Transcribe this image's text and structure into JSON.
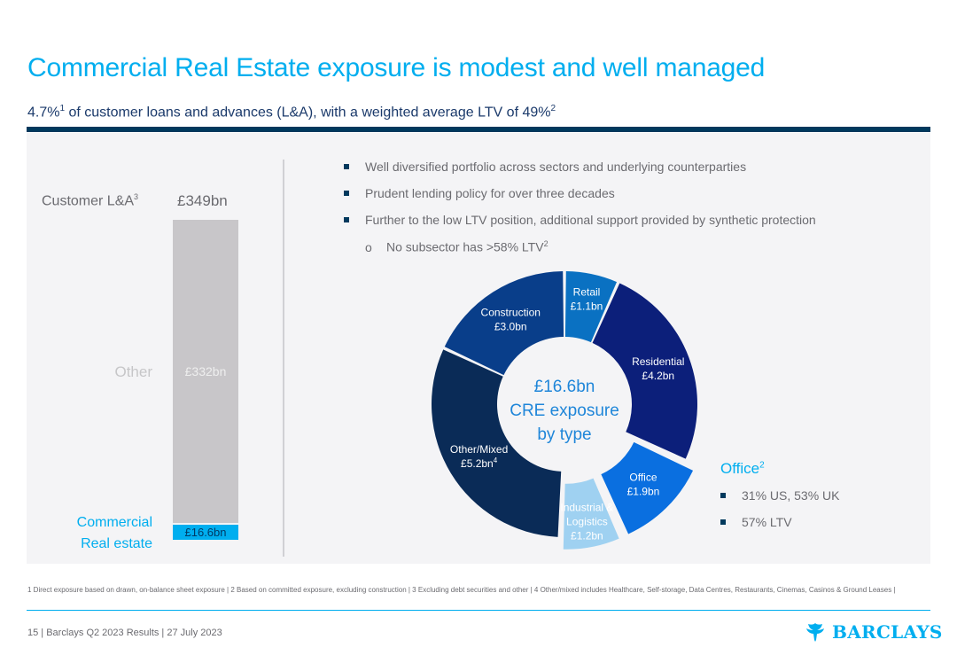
{
  "title": "Commercial Real Estate exposure is modest and well managed",
  "subtitle": {
    "pct": "4.7%",
    "pct_note": "1",
    "text": " of customer loans and advances (L&A), with a weighted average LTV of 49%",
    "note": "2"
  },
  "left_chart": {
    "label": "Customer L&A",
    "label_note": "3",
    "total": "£349bn",
    "other_label": "Other",
    "other_value": "£332bn",
    "cre_label_line1": "Commercial",
    "cre_label_line2": "Real estate",
    "cre_value": "£16.6bn"
  },
  "bullets": [
    "Well diversified portfolio across sectors and underlying counterparties",
    "Prudent lending policy for over three decades",
    "Further to the low LTV position, additional support provided by synthetic protection"
  ],
  "sub_bullet": {
    "marker": "o",
    "text": "No subsector has >58% LTV",
    "note": "2"
  },
  "donut": {
    "center_line1": "£16.6bn",
    "center_line2": "CRE exposure",
    "center_line3": "by type"
  },
  "office_box": {
    "heading": "Office",
    "heading_note": "2",
    "items": [
      "31% US, 53% UK",
      "57% LTV"
    ]
  },
  "footnote": "1 Direct exposure based on drawn, on-balance sheet exposure | 2 Based on committed exposure, excluding construction | 3 Excluding debt securities and other | 4 Other/mixed includes Healthcare, Self-storage, Data Centres, Restaurants, Cinemas, Casinos & Ground Leases |",
  "footer": "15  |  Barclays Q2 2023 Results  |  27 July 2023",
  "logo_text": "BARCLAYS",
  "chart_data": [
    {
      "type": "bar",
      "stacked": true,
      "categories": [
        "Customer L&A"
      ],
      "series": [
        {
          "name": "Commercial Real estate",
          "values": [
            16.6
          ]
        },
        {
          "name": "Other",
          "values": [
            332
          ]
        }
      ],
      "total": 349,
      "unit": "£bn"
    },
    {
      "type": "pie",
      "donut": true,
      "unit": "£bn",
      "slices": [
        {
          "name": "Retail",
          "value": 1.1,
          "value_label": "£1.1bn",
          "color": "#0a71c2",
          "text_color": "#ffffff",
          "exploded": false
        },
        {
          "name": "Residential",
          "value": 4.2,
          "value_label": "£4.2bn",
          "color": "#0c1f7a",
          "text_color": "#ffffff",
          "exploded": false
        },
        {
          "name": "Office",
          "value": 1.9,
          "value_label": "£1.9bn",
          "color": "#0a6fe0",
          "text_color": "#ffffff",
          "exploded": true
        },
        {
          "name": "Industrial & Logistics",
          "value": 1.2,
          "value_label": "£1.2bn",
          "color": "#9fd1f1",
          "text_color": "#ffffff",
          "exploded": true
        },
        {
          "name": "Other/Mixed",
          "value": 5.2,
          "value_label": "£5.2bn",
          "note": "4",
          "color": "#0a2b57",
          "text_color": "#ffffff",
          "exploded": false
        },
        {
          "name": "Construction",
          "value": 3.0,
          "value_label": "£3.0bn",
          "color": "#093e8a",
          "text_color": "#ffffff",
          "exploded": false
        }
      ]
    }
  ]
}
